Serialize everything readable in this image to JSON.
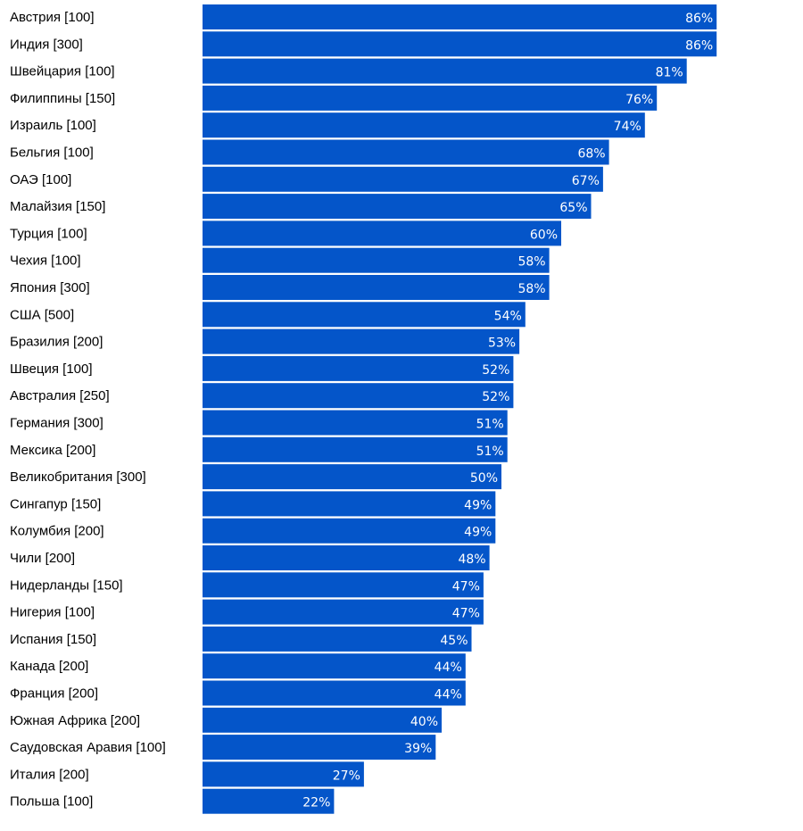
{
  "chart_data": {
    "type": "bar",
    "orientation": "horizontal",
    "title": "",
    "xlabel": "",
    "ylabel": "",
    "xlim": [
      0,
      100
    ],
    "grid": false,
    "legend": "none",
    "value_suffix": "%",
    "bar_color": "#0455c9",
    "categories": [
      "Австрия [100]",
      "Индия [300]",
      "Швейцария [100]",
      "Филиппины [150]",
      "Израиль [100]",
      "Бельгия [100]",
      "ОАЭ [100]",
      "Малайзия [150]",
      "Турция [100]",
      "Чехия [100]",
      "Япония [300]",
      "США [500]",
      "Бразилия [200]",
      "Швеция [100]",
      "Австралия [250]",
      "Германия [300]",
      "Мексика [200]",
      "Великобритания [300]",
      "Сингапур [150]",
      "Колумбия [200]",
      "Чили [200]",
      "Нидерланды [150]",
      "Нигерия [100]",
      "Испания [150]",
      "Канада [200]",
      "Франция [200]",
      "Южная Африка [200]",
      "Саудовская Аравия [100]",
      "Италия [200]",
      "Польша [100]"
    ],
    "values": [
      86,
      86,
      81,
      76,
      74,
      68,
      67,
      65,
      60,
      58,
      58,
      54,
      53,
      52,
      52,
      51,
      51,
      50,
      49,
      49,
      48,
      47,
      47,
      45,
      44,
      44,
      40,
      39,
      27,
      22
    ],
    "value_labels": [
      "86%",
      "86%",
      "81%",
      "76%",
      "74%",
      "68%",
      "67%",
      "65%",
      "60%",
      "58%",
      "58%",
      "54%",
      "53%",
      "52%",
      "52%",
      "51%",
      "51%",
      "50%",
      "49%",
      "49%",
      "48%",
      "47%",
      "47%",
      "45%",
      "44%",
      "44%",
      "40%",
      "39%",
      "27%",
      "22%"
    ]
  }
}
